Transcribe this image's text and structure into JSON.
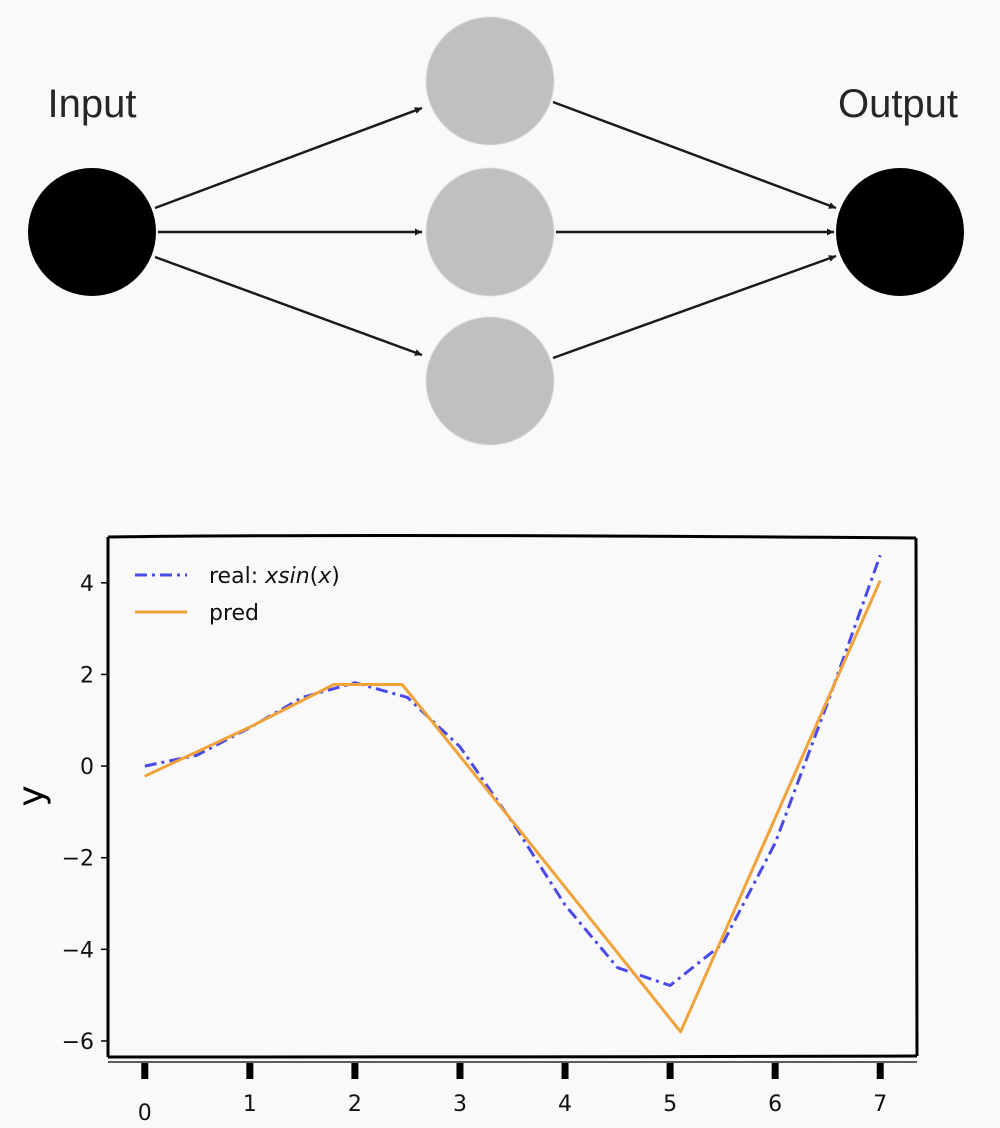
{
  "diagram": {
    "input_label": "Input",
    "output_label": "Output",
    "hidden_nodes": 3,
    "colors": {
      "io_node": "#000000",
      "hidden_node": "#c0c0c0",
      "edge": "#1a1a1a"
    }
  },
  "chart_data": {
    "type": "line",
    "title": "",
    "xlabel": "",
    "ylabel": "y",
    "xlim": [
      -0.35,
      7.35
    ],
    "ylim": [
      -6.35,
      5.0
    ],
    "xticks": [
      0,
      1,
      2,
      3,
      4,
      5,
      6,
      7
    ],
    "xtick_labels": [
      "0",
      "1",
      "2",
      "3",
      "4",
      "5",
      "6",
      "7"
    ],
    "yticks": [
      -6,
      -4,
      -2,
      0,
      2,
      4
    ],
    "ytick_labels": [
      "−6",
      "−4",
      "−2",
      "0",
      "2",
      "4"
    ],
    "grid": false,
    "legend": "top-left",
    "series": [
      {
        "name": "real: xsin(x)",
        "name_parts": {
          "prefix": "real: ",
          "func": "xsin",
          "arg_open": "(",
          "arg": "x",
          "arg_close": ")"
        },
        "color": "#4a4ae8",
        "style": "dashdot",
        "x": [
          0,
          0.5,
          1,
          1.5,
          2,
          2.5,
          3,
          3.5,
          4,
          4.5,
          5,
          5.5,
          6,
          6.5,
          7
        ],
        "y": [
          0,
          0.24,
          0.84,
          1.5,
          1.82,
          1.5,
          0.42,
          -1.23,
          -3.03,
          -4.4,
          -4.79,
          -3.88,
          -1.68,
          1.39,
          4.6
        ]
      },
      {
        "name": "pred",
        "color": "#f0a33a",
        "style": "solid",
        "x": [
          0,
          1.0,
          1.8,
          2.45,
          3.55,
          5.1,
          7.0
        ],
        "y": [
          -0.22,
          0.85,
          1.78,
          1.78,
          -1.35,
          -5.8,
          4.05
        ]
      }
    ]
  }
}
